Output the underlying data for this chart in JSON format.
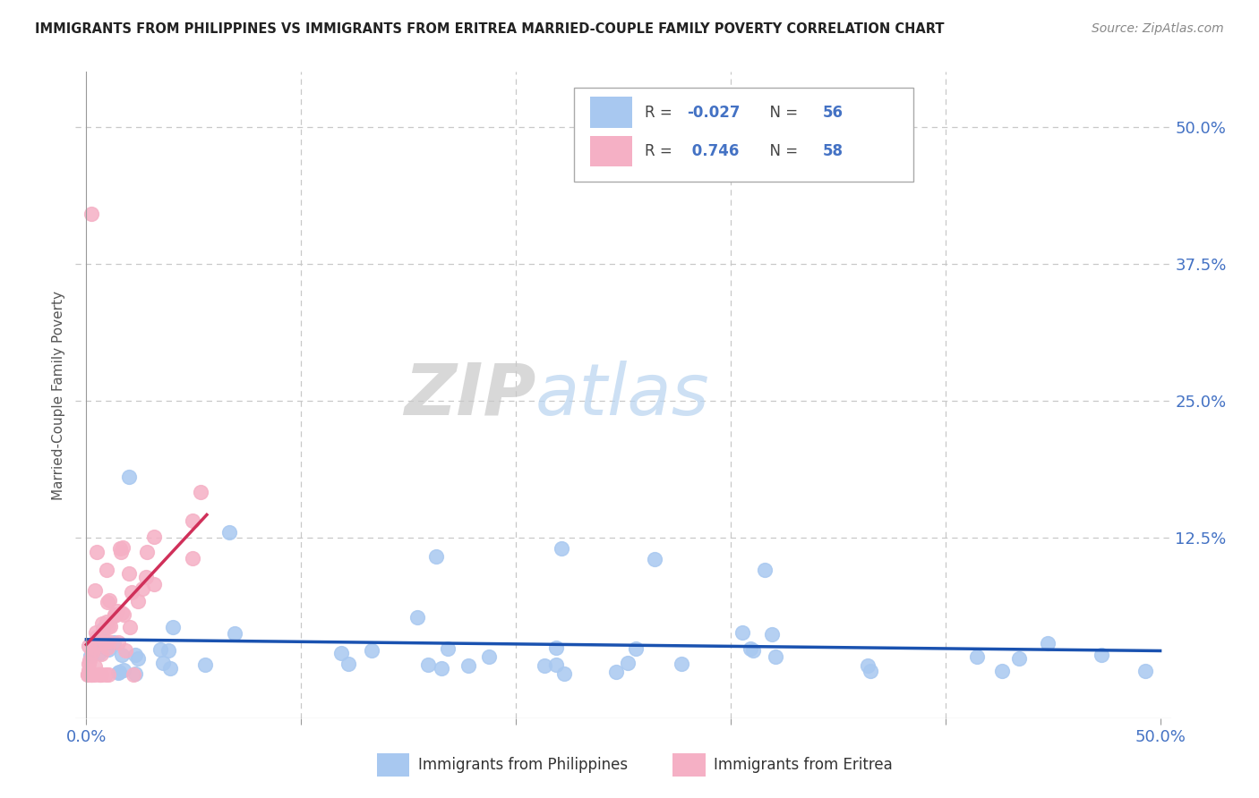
{
  "title": "IMMIGRANTS FROM PHILIPPINES VS IMMIGRANTS FROM ERITREA MARRIED-COUPLE FAMILY POVERTY CORRELATION CHART",
  "source": "Source: ZipAtlas.com",
  "ylabel": "Married-Couple Family Poverty",
  "xlim": [
    -0.005,
    0.505
  ],
  "ylim": [
    -0.04,
    0.55
  ],
  "ytick_vals_right": [
    0.0,
    0.125,
    0.25,
    0.375,
    0.5
  ],
  "ytick_labels_right": [
    "",
    "12.5%",
    "25.0%",
    "37.5%",
    "50.0%"
  ],
  "grid_color": "#c8c8c8",
  "background_color": "#ffffff",
  "philippines_color": "#a8c8f0",
  "eritrea_color": "#f5b0c5",
  "philippines_line_color": "#1a52b0",
  "eritrea_line_color": "#d0305a",
  "legend_R_philippines": "-0.027",
  "legend_N_philippines": "56",
  "legend_R_eritrea": "0.746",
  "legend_N_eritrea": "58",
  "legend_label_philippines": "Immigrants from Philippines",
  "legend_label_eritrea": "Immigrants from Eritrea",
  "axis_color": "#999999",
  "tick_color": "#4472c4",
  "title_color": "#222222",
  "source_color": "#888888",
  "ylabel_color": "#555555"
}
